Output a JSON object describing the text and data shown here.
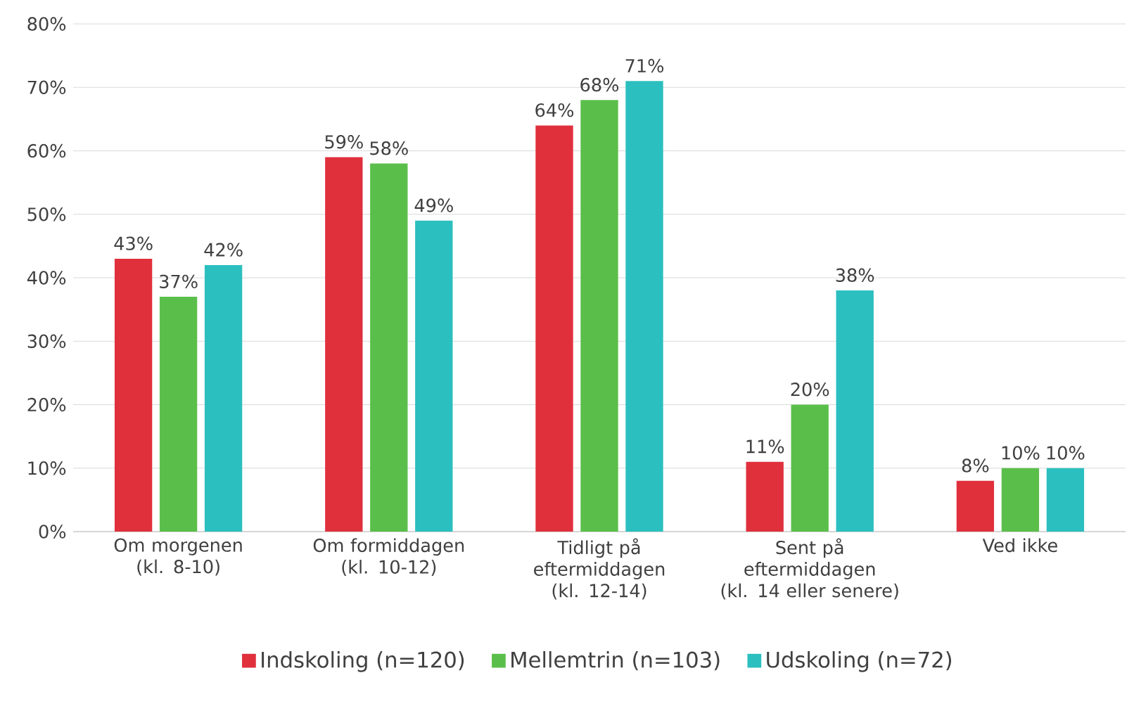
{
  "chart_data": {
    "type": "bar",
    "categories": [
      "Om morgenen (kl. 8-10)",
      "Om formiddagen (kl. 10-12)",
      "Tidligt på eftermiddagen (kl. 12-14)",
      "Sent på eftermiddagen (kl. 14 eller senere)",
      "Ved ikke"
    ],
    "series": [
      {
        "name": "Indskoling (n=120)",
        "color": "#e0303c",
        "values": [
          43,
          59,
          64,
          11,
          8
        ],
        "value_labels": [
          "43%",
          "59%",
          "64%",
          "11%",
          "8%"
        ]
      },
      {
        "name": "Mellemtrin (n=103)",
        "color": "#5abf4a",
        "values": [
          37,
          58,
          68,
          20,
          10
        ],
        "value_labels": [
          "37%",
          "58%",
          "68%",
          "20%",
          "10%"
        ]
      },
      {
        "name": "Udskoling (n=72)",
        "color": "#2bbfbf",
        "values": [
          42,
          49,
          71,
          38,
          10
        ],
        "value_labels": [
          "42%",
          "49%",
          "71%",
          "38%",
          "10%"
        ]
      }
    ],
    "ylim": [
      0,
      80
    ],
    "yticks": [
      {
        "value": 0,
        "label": "0%"
      },
      {
        "value": 10,
        "label": "10%"
      },
      {
        "value": 20,
        "label": "20%"
      },
      {
        "value": 30,
        "label": "30%"
      },
      {
        "value": 40,
        "label": "40%"
      },
      {
        "value": 50,
        "label": "50%"
      },
      {
        "value": 60,
        "label": "60%"
      },
      {
        "value": 70,
        "label": "70%"
      },
      {
        "value": 80,
        "label": "80%"
      }
    ],
    "grid": "y",
    "legend": "bottom"
  }
}
